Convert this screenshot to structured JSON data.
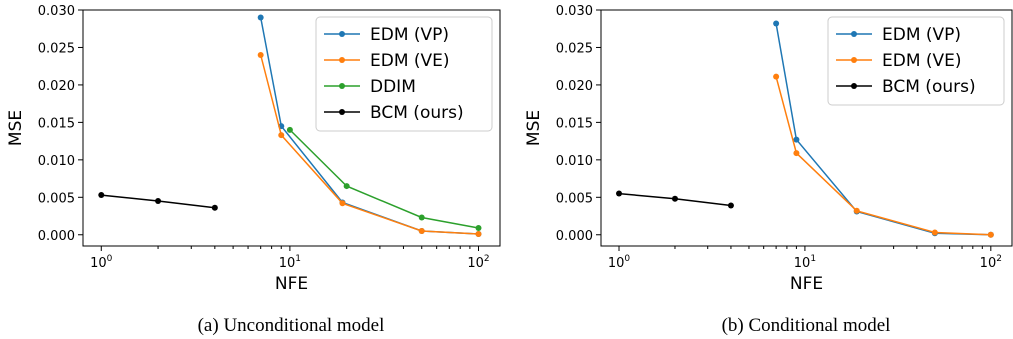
{
  "chart_data": [
    {
      "type": "line",
      "caption": "(a) Unconditional model",
      "xlabel": "NFE",
      "ylabel": "MSE",
      "xscale": "log",
      "xlim": [
        0.8,
        130
      ],
      "ylim": [
        -0.0015,
        0.03
      ],
      "xticks": [
        {
          "value": 1,
          "mantissa": "10",
          "exp": "0"
        },
        {
          "value": 10,
          "mantissa": "10",
          "exp": "1"
        },
        {
          "value": 100,
          "mantissa": "10",
          "exp": "2"
        }
      ],
      "yticks": [
        {
          "value": 0.0,
          "label": "0.000"
        },
        {
          "value": 0.005,
          "label": "0.005"
        },
        {
          "value": 0.01,
          "label": "0.010"
        },
        {
          "value": 0.015,
          "label": "0.015"
        },
        {
          "value": 0.02,
          "label": "0.020"
        },
        {
          "value": 0.025,
          "label": "0.025"
        },
        {
          "value": 0.03,
          "label": "0.030"
        }
      ],
      "legend_position": "top-right",
      "series": [
        {
          "name": "EDM (VP)",
          "color": "#1f77b4",
          "x": [
            7,
            9,
            19,
            50,
            100
          ],
          "y": [
            0.029,
            0.0145,
            0.0043,
            0.0005,
            0.0001
          ]
        },
        {
          "name": "EDM (VE)",
          "color": "#ff7f0e",
          "x": [
            7,
            9,
            19,
            50,
            100
          ],
          "y": [
            0.024,
            0.0133,
            0.0042,
            0.0005,
            0.0001
          ]
        },
        {
          "name": "DDIM",
          "color": "#2ca02c",
          "x": [
            10,
            20,
            50,
            100
          ],
          "y": [
            0.014,
            0.0065,
            0.0023,
            0.0009
          ]
        },
        {
          "name": "BCM (ours)",
          "color": "#000000",
          "x": [
            1,
            2,
            4
          ],
          "y": [
            0.0053,
            0.0045,
            0.0036
          ]
        }
      ]
    },
    {
      "type": "line",
      "caption": "(b) Conditional model",
      "xlabel": "NFE",
      "ylabel": "MSE",
      "xscale": "log",
      "xlim": [
        0.8,
        130
      ],
      "ylim": [
        -0.0015,
        0.03
      ],
      "xticks": [
        {
          "value": 1,
          "mantissa": "10",
          "exp": "0"
        },
        {
          "value": 10,
          "mantissa": "10",
          "exp": "1"
        },
        {
          "value": 100,
          "mantissa": "10",
          "exp": "2"
        }
      ],
      "yticks": [
        {
          "value": 0.0,
          "label": "0.000"
        },
        {
          "value": 0.005,
          "label": "0.005"
        },
        {
          "value": 0.01,
          "label": "0.010"
        },
        {
          "value": 0.015,
          "label": "0.015"
        },
        {
          "value": 0.02,
          "label": "0.020"
        },
        {
          "value": 0.025,
          "label": "0.025"
        },
        {
          "value": 0.03,
          "label": "0.030"
        }
      ],
      "legend_position": "top-right",
      "series": [
        {
          "name": "EDM (VP)",
          "color": "#1f77b4",
          "x": [
            7,
            9,
            19,
            50,
            100
          ],
          "y": [
            0.0282,
            0.0127,
            0.0031,
            0.0002,
            0.0
          ]
        },
        {
          "name": "EDM (VE)",
          "color": "#ff7f0e",
          "x": [
            7,
            9,
            19,
            50,
            100
          ],
          "y": [
            0.0211,
            0.0109,
            0.0032,
            0.0003,
            0.0
          ]
        },
        {
          "name": "BCM (ours)",
          "color": "#000000",
          "x": [
            1,
            2,
            4
          ],
          "y": [
            0.0055,
            0.0048,
            0.0039
          ]
        }
      ]
    }
  ]
}
